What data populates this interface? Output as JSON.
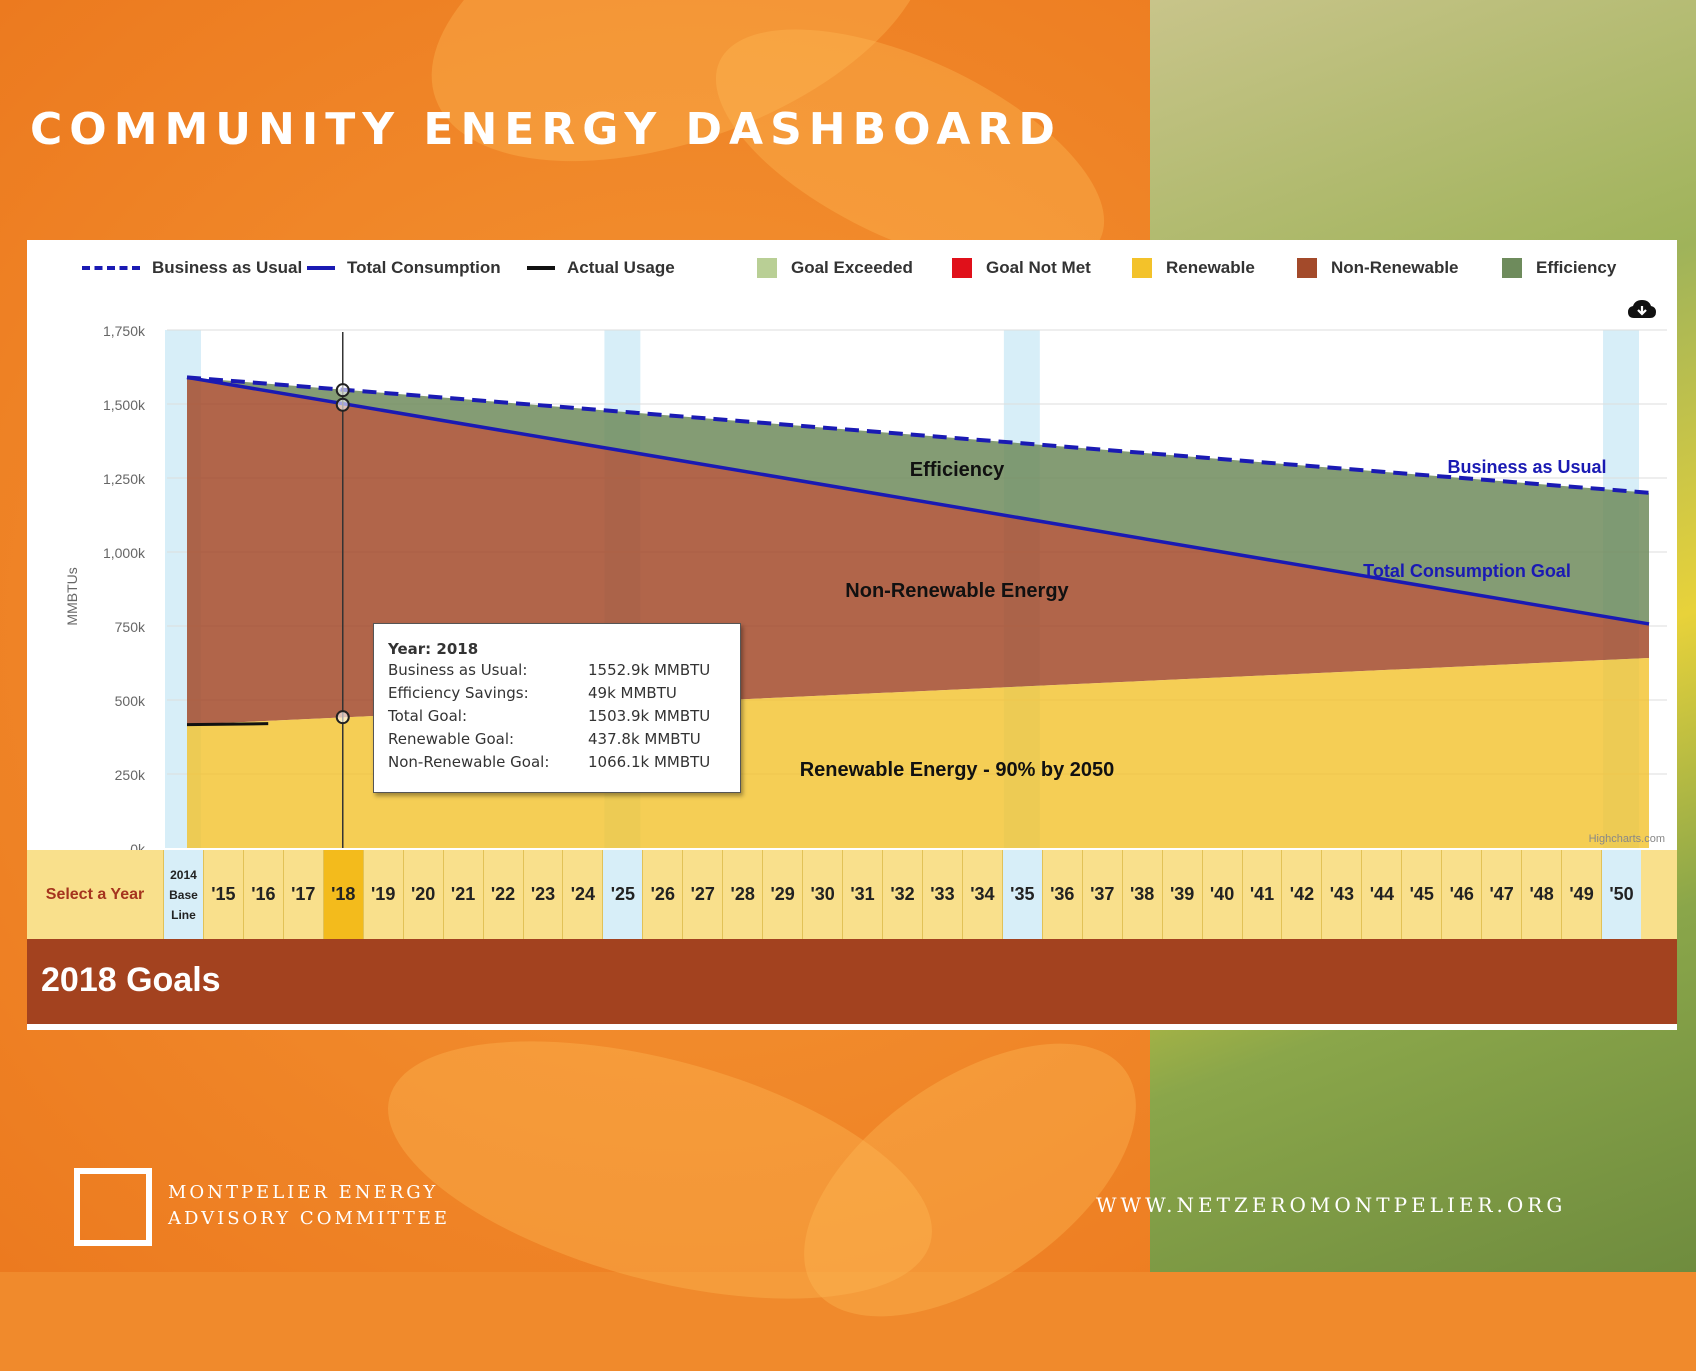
{
  "header": {
    "title": "COMMUNITY ENERGY DASHBOARD"
  },
  "legend": [
    {
      "label": "Business as Usual",
      "kind": "dash",
      "color": "#1a1ab3"
    },
    {
      "label": "Total Consumption",
      "kind": "line",
      "color": "#1a1ab3"
    },
    {
      "label": "Actual Usage",
      "kind": "line",
      "color": "#111111"
    },
    {
      "label": "Goal Exceeded",
      "kind": "swatch",
      "color": "#b9cf95"
    },
    {
      "label": "Goal Not Met",
      "kind": "swatch",
      "color": "#e0101a"
    },
    {
      "label": "Renewable",
      "kind": "swatch",
      "color": "#f3c22a"
    },
    {
      "label": "Non-Renewable",
      "kind": "swatch",
      "color": "#a34a2a"
    },
    {
      "label": "Efficiency",
      "kind": "swatch",
      "color": "#6e8b5c"
    }
  ],
  "chart_data": {
    "type": "area",
    "ylabel": "MMBTUs",
    "ylim": [
      0,
      1750000
    ],
    "yticks": [
      "0k",
      "250k",
      "500k",
      "750k",
      "1,000k",
      "1,250k",
      "1,500k",
      "1,750k"
    ],
    "x": [
      2014,
      2050
    ],
    "series": [
      {
        "name": "Business as Usual",
        "values": [
          1590000,
          1200000
        ]
      },
      {
        "name": "Total Consumption",
        "values": [
          1590000,
          757000
        ]
      },
      {
        "name": "Renewable",
        "values": [
          417000,
          642000
        ]
      },
      {
        "name": "Actual Usage",
        "values": [
          [
            2014,
            417000
          ],
          [
            2016,
            420000
          ]
        ]
      }
    ],
    "annotations": [
      "Efficiency",
      "Non-Renewable Energy",
      "Renewable Energy - 90% by 2050",
      "Business as Usual",
      "Total Consumption Goal"
    ],
    "credit": "Highcharts.com",
    "selected_year": 2018
  },
  "tooltip": {
    "title": "Year: 2018",
    "rows": [
      {
        "k": "Business as Usual:",
        "v": "1552.9k MMBTU"
      },
      {
        "k": "Efficiency Savings:",
        "v": "49k MMBTU"
      },
      {
        "k": "Total Goal:",
        "v": "1503.9k MMBTU"
      },
      {
        "k": "Renewable Goal:",
        "v": "437.8k MMBTU"
      },
      {
        "k": "Non-Renewable Goal:",
        "v": "1066.1k MMBTU"
      }
    ]
  },
  "year_selector": {
    "label": "Select a Year",
    "base_label": "2014 Base Line",
    "years": [
      "'15",
      "'16",
      "'17",
      "'18",
      "'19",
      "'20",
      "'21",
      "'22",
      "'23",
      "'24",
      "'25",
      "'26",
      "'27",
      "'28",
      "'29",
      "'30",
      "'31",
      "'32",
      "'33",
      "'34",
      "'35",
      "'36",
      "'37",
      "'38",
      "'39",
      "'40",
      "'41",
      "'42",
      "'43",
      "'44",
      "'45",
      "'46",
      "'47",
      "'48",
      "'49",
      "'50"
    ],
    "selected": "'18",
    "milestones": [
      "'25",
      "'35",
      "'50"
    ]
  },
  "goals": {
    "title": "2018 Goals"
  },
  "footer": {
    "org_line1": "MONTPELIER ENERGY",
    "org_line2": "ADVISORY COMMITTEE",
    "url": "WWW.NETZEROMONTPELIER.ORG"
  },
  "colors": {
    "efficiency": "#6e8b5c",
    "non_renewable": "#a34a2a",
    "renewable": "#f3c22a",
    "bau": "#1a1ab3",
    "milestone": "#d7eef8",
    "goals_bar": "#a3421f"
  }
}
